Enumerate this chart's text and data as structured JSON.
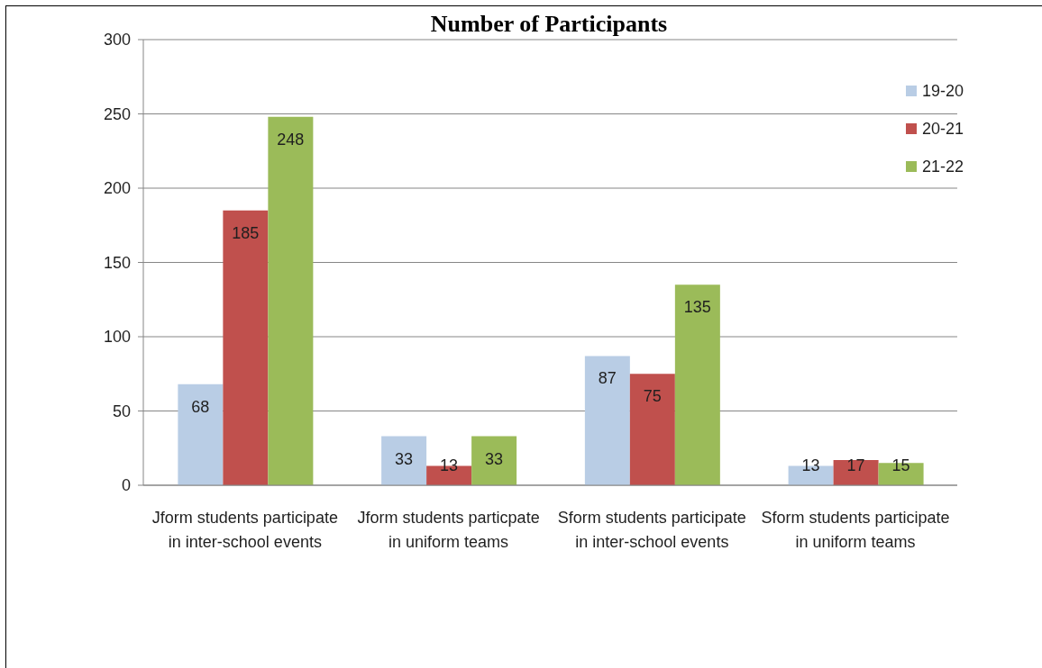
{
  "chart_data": {
    "type": "bar",
    "title": "Number of Participants",
    "categories": [
      "Jform students participate in inter-school events",
      "Jform students particpate in uniform teams",
      "Sform students participate in inter-school events",
      "Sform students participate in uniform teams"
    ],
    "series": [
      {
        "name": "19-20",
        "color": "#b9cde5",
        "values": [
          68,
          33,
          87,
          13
        ]
      },
      {
        "name": "20-21",
        "color": "#c0504d",
        "values": [
          185,
          13,
          75,
          17
        ]
      },
      {
        "name": "21-22",
        "color": "#9bbb59",
        "values": [
          248,
          33,
          135,
          15
        ]
      }
    ],
    "ylim": [
      0,
      300
    ],
    "yticks": [
      0,
      50,
      100,
      150,
      200,
      250,
      300
    ],
    "grid": "y",
    "legend": "top right",
    "data_labels": true
  }
}
